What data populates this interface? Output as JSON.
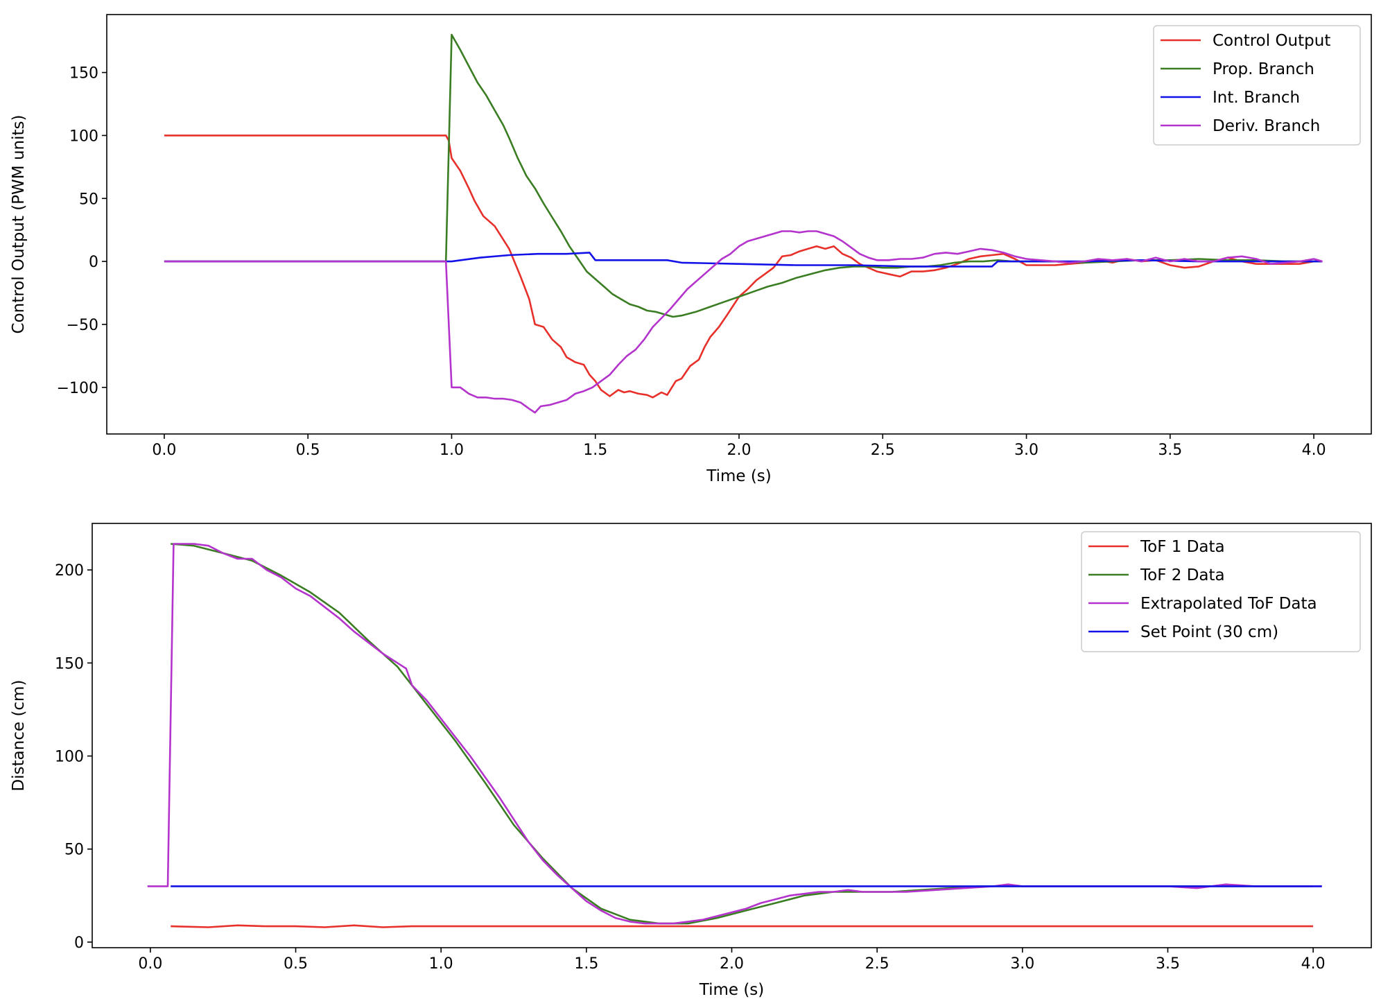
{
  "chart_data": [
    {
      "type": "line",
      "xlabel": "Time (s)",
      "ylabel": "Control Output (PWM units)",
      "xlim": [
        -0.2,
        4.2
      ],
      "ylim": [
        -137,
        196
      ],
      "xticks": [
        0.0,
        0.5,
        1.0,
        1.5,
        2.0,
        2.5,
        3.0,
        3.5,
        4.0
      ],
      "xtick_labels": [
        "0.0",
        "0.5",
        "1.0",
        "1.5",
        "2.0",
        "2.5",
        "3.0",
        "3.5",
        "4.0"
      ],
      "yticks": [
        150,
        100,
        50,
        0,
        -50,
        -100
      ],
      "ytick_labels": [
        "150",
        "100",
        "50",
        "0",
        "−50",
        "−100"
      ],
      "legend_position": "top-right",
      "grid": false,
      "series": [
        {
          "name": "Control Output",
          "color": "#e8302b",
          "x": [
            0,
            0.98,
            0.99,
            1.0,
            1.03,
            1.06,
            1.08,
            1.11,
            1.15,
            1.2,
            1.24,
            1.27,
            1.29,
            1.32,
            1.35,
            1.38,
            1.4,
            1.43,
            1.46,
            1.48,
            1.5,
            1.52,
            1.55,
            1.58,
            1.6,
            1.62,
            1.65,
            1.68,
            1.7,
            1.73,
            1.75,
            1.78,
            1.8,
            1.83,
            1.86,
            1.88,
            1.9,
            1.93,
            1.96,
            2.0,
            2.03,
            2.06,
            2.09,
            2.12,
            2.15,
            2.18,
            2.21,
            2.24,
            2.27,
            2.3,
            2.33,
            2.36,
            2.39,
            2.42,
            2.45,
            2.48,
            2.52,
            2.56,
            2.6,
            2.64,
            2.68,
            2.72,
            2.76,
            2.8,
            2.84,
            2.88,
            2.92,
            2.96,
            3.0,
            3.05,
            3.1,
            3.15,
            3.2,
            3.25,
            3.3,
            3.35,
            3.4,
            3.45,
            3.5,
            3.55,
            3.6,
            3.65,
            3.7,
            3.75,
            3.8,
            3.85,
            3.9,
            3.95,
            4.0,
            4.03
          ],
          "y": [
            100,
            100,
            96,
            82,
            72,
            58,
            48,
            36,
            28,
            10,
            -12,
            -30,
            -50,
            -52,
            -62,
            -68,
            -76,
            -80,
            -82,
            -90,
            -95,
            -102,
            -107,
            -102,
            -104,
            -103,
            -105,
            -106,
            -108,
            -104,
            -106,
            -95,
            -93,
            -83,
            -78,
            -68,
            -60,
            -52,
            -42,
            -28,
            -22,
            -15,
            -10,
            -5,
            4,
            5,
            8,
            10,
            12,
            10,
            12,
            6,
            3,
            -2,
            -5,
            -8,
            -10,
            -12,
            -8,
            -8,
            -7,
            -5,
            -2,
            2,
            4,
            5,
            6,
            2,
            -3,
            -3,
            -3,
            -2,
            -1,
            1,
            -1,
            2,
            0,
            1,
            -3,
            -5,
            -4,
            0,
            3,
            0,
            -2,
            -2,
            -2,
            -2,
            0,
            0
          ]
        },
        {
          "name": "Prop. Branch",
          "color": "#3a7d22",
          "x": [
            0,
            0.98,
            1.0,
            1.03,
            1.06,
            1.09,
            1.12,
            1.15,
            1.18,
            1.2,
            1.23,
            1.26,
            1.29,
            1.32,
            1.35,
            1.38,
            1.41,
            1.44,
            1.47,
            1.5,
            1.53,
            1.56,
            1.59,
            1.62,
            1.65,
            1.68,
            1.71,
            1.74,
            1.77,
            1.8,
            1.85,
            1.9,
            1.95,
            2.0,
            2.05,
            2.1,
            2.15,
            2.2,
            2.25,
            2.3,
            2.35,
            2.4,
            2.45,
            2.5,
            2.55,
            2.6,
            2.65,
            2.7,
            2.75,
            2.8,
            2.85,
            2.9,
            2.95,
            3.0,
            3.1,
            3.2,
            3.3,
            3.4,
            3.5,
            3.6,
            3.7,
            3.8,
            3.9,
            4.0,
            4.03
          ],
          "y": [
            0,
            0,
            180,
            168,
            155,
            142,
            132,
            120,
            108,
            98,
            82,
            68,
            58,
            46,
            35,
            24,
            12,
            2,
            -8,
            -14,
            -20,
            -26,
            -30,
            -34,
            -36,
            -39,
            -40,
            -42,
            -44,
            -43,
            -40,
            -36,
            -32,
            -28,
            -24,
            -20,
            -17,
            -13,
            -10,
            -7,
            -5,
            -4,
            -4,
            -5,
            -5,
            -4,
            -4,
            -3,
            -1,
            0,
            0,
            1,
            0,
            0,
            0,
            -1,
            0,
            1,
            1,
            2,
            1,
            1,
            0,
            0,
            0
          ]
        },
        {
          "name": "Int. Branch",
          "color": "#1212e8",
          "x": [
            0,
            0.98,
            1.0,
            1.1,
            1.2,
            1.3,
            1.4,
            1.48,
            1.5,
            1.6,
            1.75,
            1.8,
            2.0,
            2.2,
            2.4,
            2.6,
            2.8,
            2.88,
            2.9,
            3.0,
            3.2,
            3.4,
            3.6,
            3.8,
            4.0,
            4.03
          ],
          "y": [
            0,
            0,
            0,
            3,
            5,
            6,
            6,
            7,
            1,
            1,
            1,
            -1,
            -2,
            -3,
            -3,
            -4,
            -4,
            -4,
            0,
            0,
            0,
            1,
            0,
            0,
            0,
            0
          ]
        },
        {
          "name": "Deriv. Branch",
          "color": "#b333cc",
          "x": [
            0,
            0.98,
            1.0,
            1.03,
            1.06,
            1.09,
            1.12,
            1.15,
            1.18,
            1.21,
            1.24,
            1.27,
            1.29,
            1.31,
            1.34,
            1.37,
            1.4,
            1.43,
            1.46,
            1.49,
            1.52,
            1.55,
            1.58,
            1.61,
            1.64,
            1.67,
            1.7,
            1.73,
            1.76,
            1.79,
            1.82,
            1.85,
            1.88,
            1.91,
            1.94,
            1.97,
            2.0,
            2.03,
            2.06,
            2.09,
            2.12,
            2.15,
            2.18,
            2.21,
            2.24,
            2.27,
            2.3,
            2.33,
            2.36,
            2.39,
            2.42,
            2.45,
            2.48,
            2.52,
            2.56,
            2.6,
            2.64,
            2.68,
            2.72,
            2.76,
            2.8,
            2.84,
            2.88,
            2.92,
            2.96,
            3.0,
            3.05,
            3.1,
            3.15,
            3.2,
            3.25,
            3.3,
            3.35,
            3.4,
            3.45,
            3.5,
            3.55,
            3.6,
            3.65,
            3.7,
            3.75,
            3.8,
            3.85,
            3.9,
            3.95,
            4.0,
            4.03
          ],
          "y": [
            0,
            0,
            -100,
            -100,
            -105,
            -108,
            -108,
            -109,
            -109,
            -110,
            -112,
            -117,
            -120,
            -115,
            -114,
            -112,
            -110,
            -105,
            -103,
            -100,
            -95,
            -90,
            -82,
            -75,
            -70,
            -62,
            -52,
            -45,
            -38,
            -30,
            -22,
            -16,
            -10,
            -4,
            2,
            6,
            12,
            16,
            18,
            20,
            22,
            24,
            24,
            23,
            24,
            24,
            22,
            20,
            16,
            11,
            6,
            3,
            1,
            1,
            2,
            2,
            3,
            6,
            7,
            6,
            8,
            10,
            9,
            7,
            4,
            2,
            1,
            0,
            -1,
            0,
            2,
            1,
            2,
            0,
            3,
            0,
            2,
            0,
            0,
            3,
            4,
            2,
            -2,
            -1,
            0,
            2,
            0
          ]
        }
      ]
    },
    {
      "type": "line",
      "xlabel": "Time (s)",
      "ylabel": "Distance (cm)",
      "xlim": [
        -0.2,
        4.2
      ],
      "ylim": [
        -3,
        225
      ],
      "xticks": [
        0.0,
        0.5,
        1.0,
        1.5,
        2.0,
        2.5,
        3.0,
        3.5,
        4.0
      ],
      "xtick_labels": [
        "0.0",
        "0.5",
        "1.0",
        "1.5",
        "2.0",
        "2.5",
        "3.0",
        "3.5",
        "4.0"
      ],
      "yticks": [
        200,
        150,
        100,
        50,
        0
      ],
      "ytick_labels": [
        "200",
        "150",
        "100",
        "50",
        "0"
      ],
      "legend_position": "top-right",
      "grid": false,
      "series": [
        {
          "name": "ToF 1 Data",
          "color": "#e8302b",
          "x": [
            0.07,
            0.2,
            0.3,
            0.4,
            0.5,
            0.6,
            0.7,
            0.8,
            0.9,
            1.0,
            1.2,
            1.4,
            1.6,
            1.8,
            2.0,
            2.2,
            2.4,
            2.6,
            2.8,
            3.0,
            3.2,
            3.4,
            3.6,
            3.8,
            4.0
          ],
          "y": [
            8.5,
            8.0,
            9.0,
            8.5,
            8.5,
            8.0,
            9.0,
            8.0,
            8.5,
            8.5,
            8.5,
            8.5,
            8.5,
            8.5,
            8.5,
            8.5,
            8.5,
            8.5,
            8.5,
            8.5,
            8.5,
            8.5,
            8.5,
            8.5,
            8.5
          ]
        },
        {
          "name": "ToF 2 Data",
          "color": "#3a7d22",
          "x": [
            0.07,
            0.15,
            0.25,
            0.35,
            0.45,
            0.55,
            0.65,
            0.75,
            0.85,
            0.95,
            1.05,
            1.15,
            1.25,
            1.35,
            1.45,
            1.55,
            1.65,
            1.75,
            1.85,
            1.95,
            2.05,
            2.15,
            2.25,
            2.35,
            2.45,
            2.55,
            2.65,
            2.75,
            2.85,
            2.95,
            3.1,
            3.3,
            3.5,
            3.7,
            3.9,
            4.0
          ],
          "y": [
            214,
            213,
            209,
            205,
            197,
            188,
            177,
            162,
            148,
            128,
            108,
            86,
            63,
            45,
            29,
            18,
            12,
            10,
            10,
            13,
            17,
            21,
            25,
            27,
            27,
            27,
            28,
            29,
            30,
            30,
            30,
            30,
            30,
            30,
            30,
            30
          ]
        },
        {
          "name": "Extrapolated ToF Data",
          "color": "#b333cc",
          "x": [
            -0.01,
            0.06,
            0.08,
            0.15,
            0.2,
            0.25,
            0.3,
            0.35,
            0.4,
            0.45,
            0.5,
            0.55,
            0.6,
            0.65,
            0.7,
            0.75,
            0.8,
            0.85,
            0.88,
            0.9,
            0.95,
            1.0,
            1.05,
            1.1,
            1.15,
            1.2,
            1.25,
            1.3,
            1.35,
            1.4,
            1.45,
            1.5,
            1.55,
            1.6,
            1.65,
            1.7,
            1.75,
            1.8,
            1.85,
            1.9,
            1.95,
            2.0,
            2.05,
            2.1,
            2.15,
            2.2,
            2.25,
            2.3,
            2.35,
            2.4,
            2.45,
            2.5,
            2.55,
            2.6,
            2.7,
            2.8,
            2.9,
            2.95,
            3.0,
            3.1,
            3.2,
            3.3,
            3.4,
            3.5,
            3.6,
            3.7,
            3.8,
            3.9,
            4.0,
            4.03
          ],
          "y": [
            30,
            30,
            214,
            214,
            213,
            209,
            206,
            206,
            200,
            196,
            190,
            186,
            180,
            174,
            167,
            161,
            155,
            150,
            147,
            138,
            130,
            120,
            110,
            100,
            89,
            78,
            66,
            54,
            44,
            36,
            29,
            22,
            17,
            13,
            11,
            10,
            10,
            10,
            11,
            12,
            14,
            16,
            18,
            21,
            23,
            25,
            26,
            27,
            27,
            28,
            27,
            27,
            27,
            27,
            28,
            29,
            30,
            31,
            30,
            30,
            30,
            30,
            30,
            30,
            29,
            31,
            30,
            30,
            30,
            30
          ]
        },
        {
          "name": "Set Point (30 cm)",
          "color": "#1212e8",
          "x": [
            0.07,
            4.03
          ],
          "y": [
            30,
            30
          ]
        }
      ]
    }
  ]
}
